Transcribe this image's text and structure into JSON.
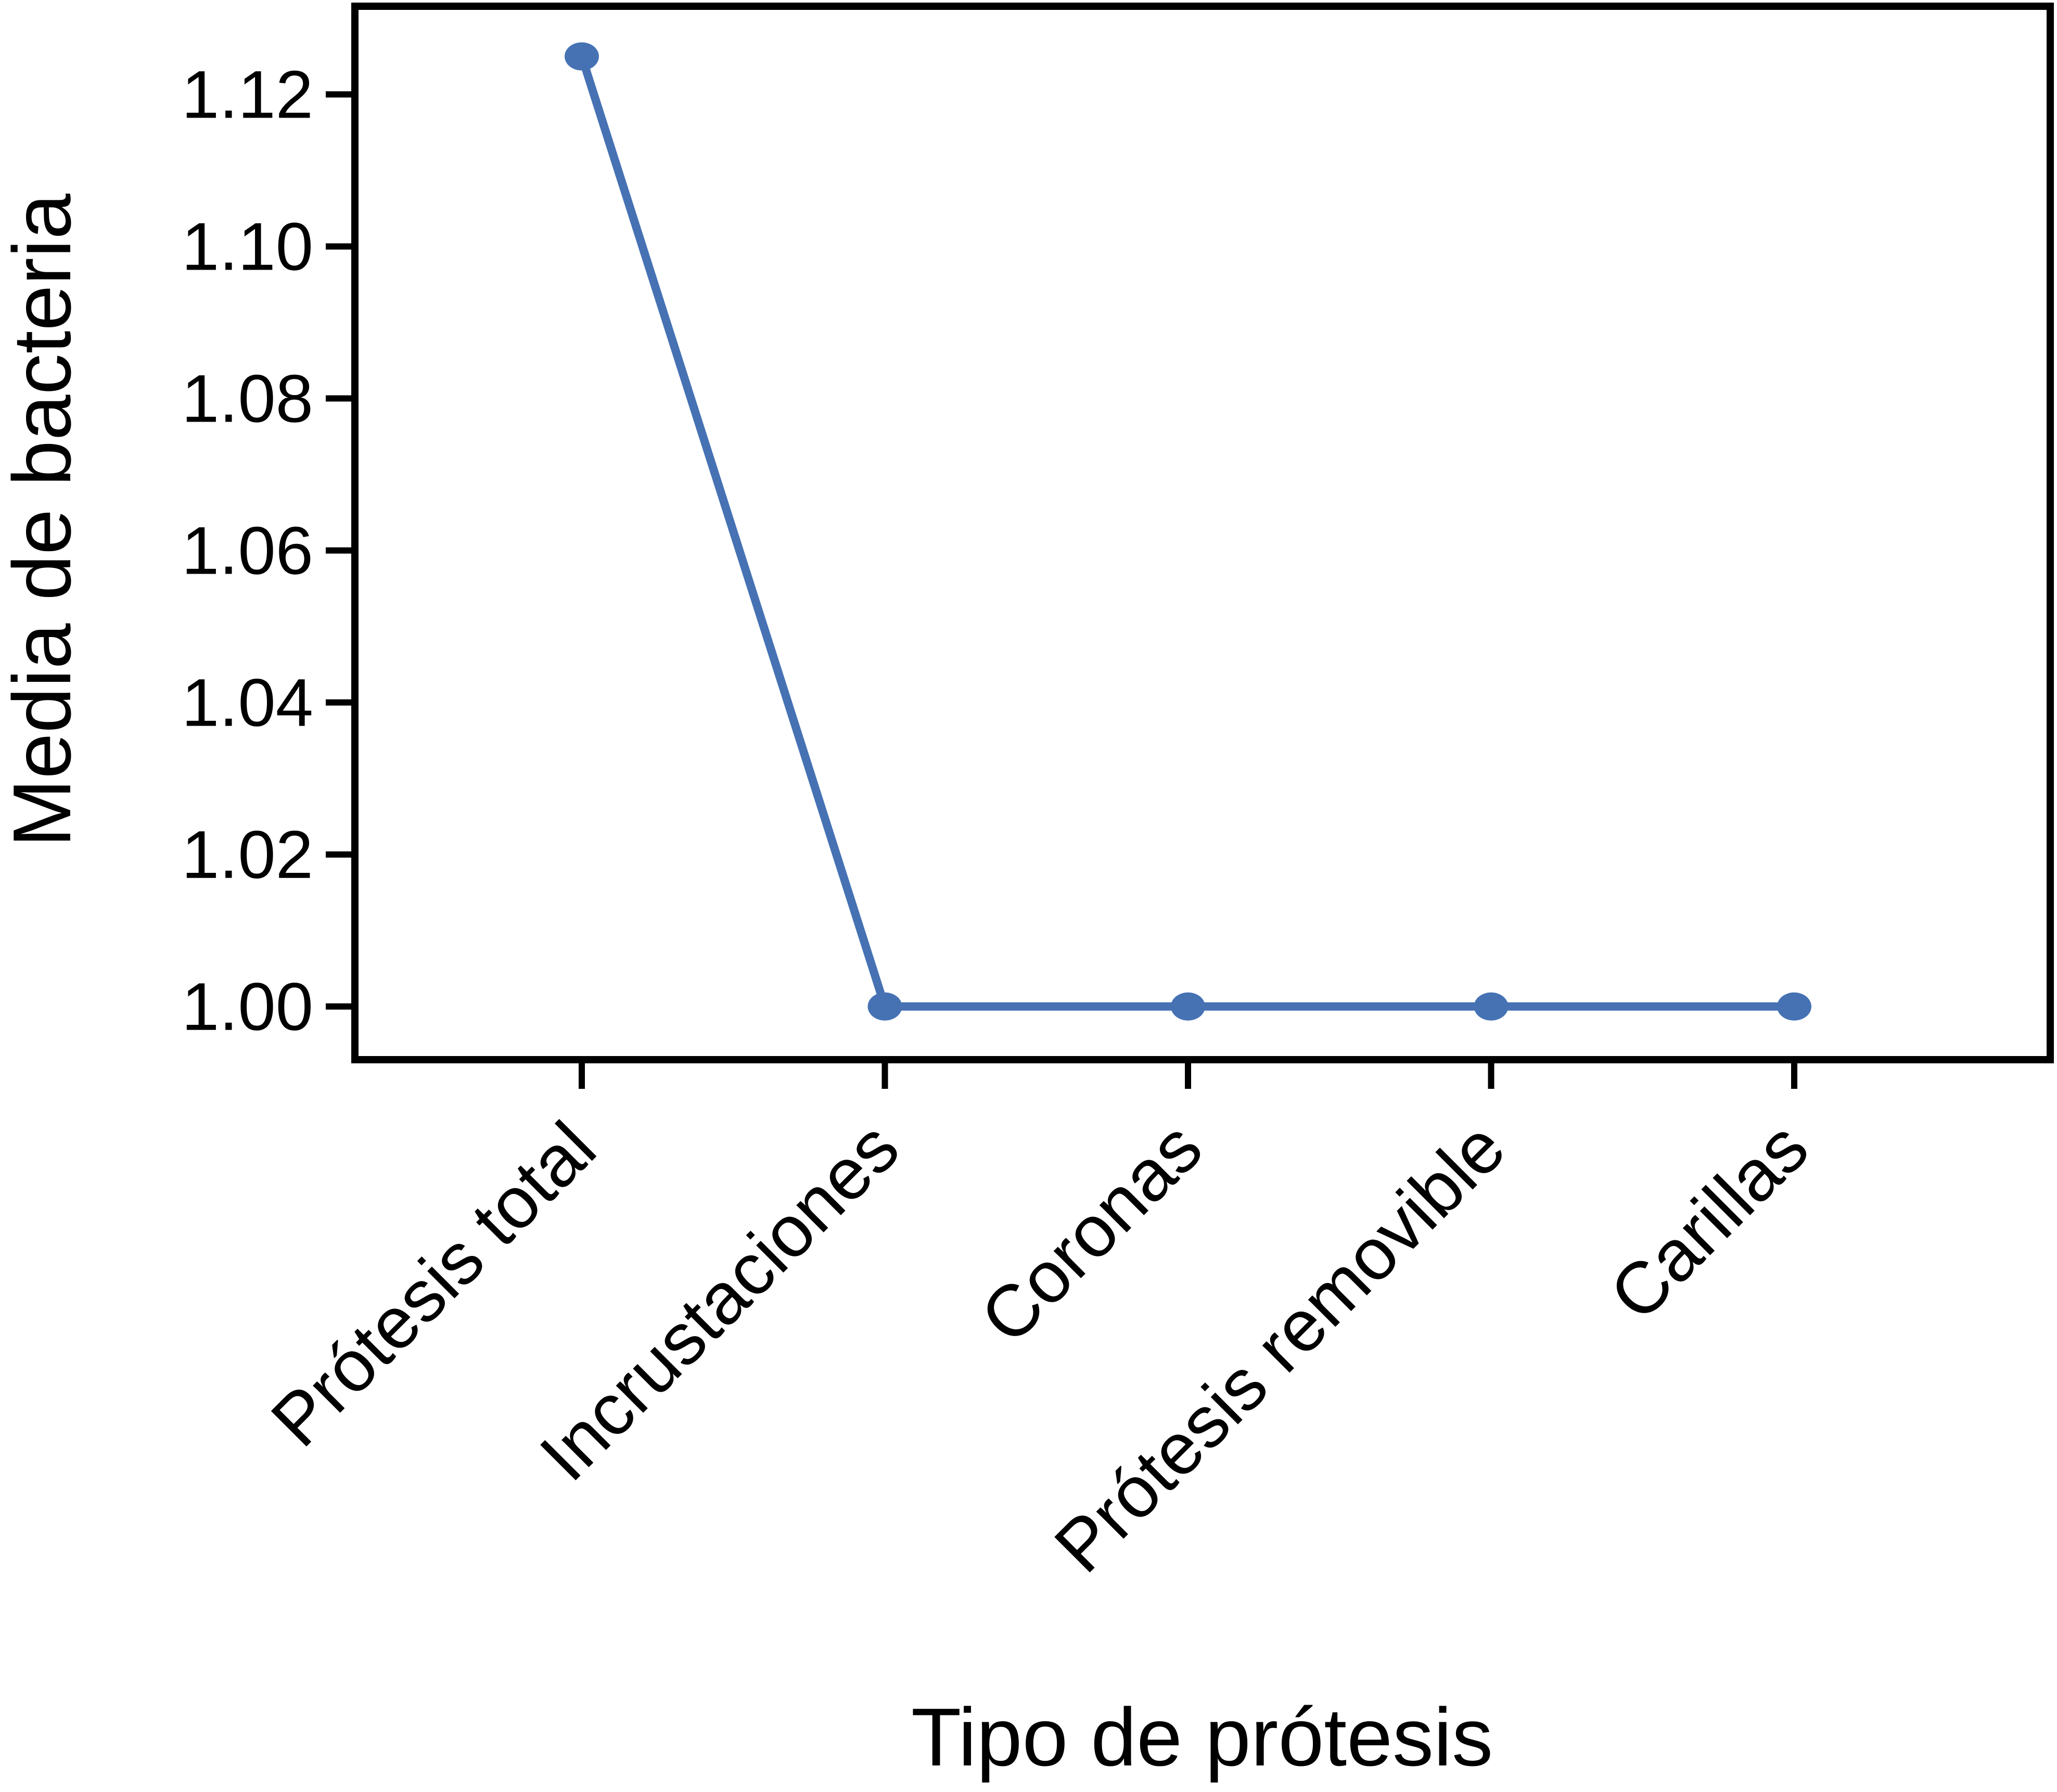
{
  "chart_data": {
    "type": "line",
    "title": "",
    "xlabel": "Tipo de prótesis",
    "ylabel": "Media de bacteria",
    "categories": [
      "Prótesis total",
      "Incrustaciones",
      "Coronas",
      "Prótesis removible",
      "Carillas"
    ],
    "series": [
      {
        "name": "Media de bacteria",
        "values": [
          1.125,
          1.0,
          1.0,
          1.0,
          1.0
        ]
      }
    ],
    "yticks": [
      1.0,
      1.02,
      1.04,
      1.06,
      1.08,
      1.1,
      1.12
    ],
    "ytick_labels": [
      "1.00",
      "1.02",
      "1.04",
      "1.06",
      "1.08",
      "1.10",
      "1.12"
    ],
    "ylim": [
      0.993,
      1.1316
    ],
    "grid": false,
    "legend_position": "none",
    "marker": "circle",
    "colors": {
      "line": "#4672b4",
      "marker": "#4672b4",
      "axis": "#000000",
      "background": "#ffffff"
    }
  }
}
